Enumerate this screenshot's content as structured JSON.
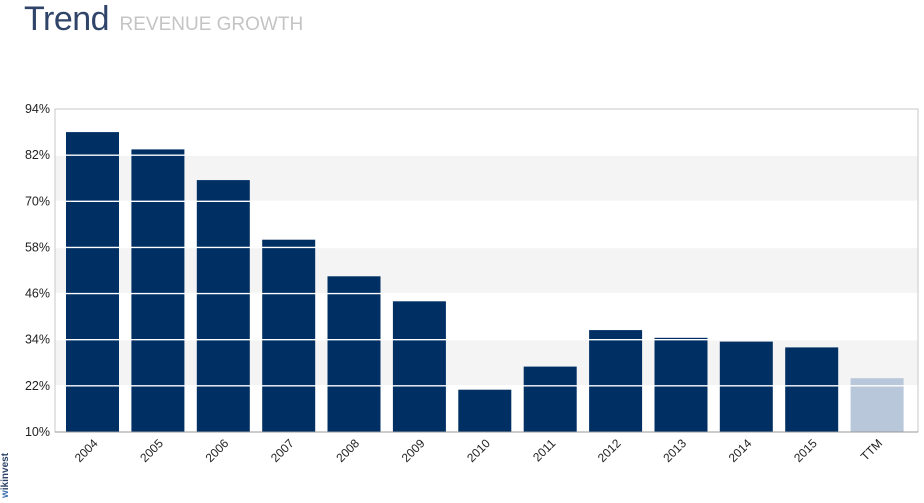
{
  "header": {
    "title": "Trend",
    "subtitle": "REVENUE GROWTH"
  },
  "brand": {
    "first": "w",
    "rest": "ikinvest"
  },
  "colors": {
    "bar": "#002f64",
    "bar_estimate": "#b8c7d9",
    "title": "#2f4468",
    "subtitle": "#c4c4c4",
    "band": "#f4f4f4",
    "frame": "#c8c8c8",
    "gridline": "#ffffff"
  },
  "chart_data": {
    "type": "bar",
    "title": "REVENUE GROWTH",
    "categories": [
      "2004",
      "2005",
      "2006",
      "2007",
      "2008",
      "2009",
      "2010",
      "2011",
      "2012",
      "2013",
      "2014",
      "2015",
      "TTM"
    ],
    "values": [
      88,
      83.5,
      75.5,
      60,
      50.5,
      44,
      21,
      27,
      36.5,
      34.5,
      33.5,
      32,
      24
    ],
    "estimated": [
      false,
      false,
      false,
      false,
      false,
      false,
      false,
      false,
      false,
      false,
      false,
      false,
      true
    ],
    "ylim": [
      10,
      94
    ],
    "yticks": [
      94,
      82,
      70,
      58,
      46,
      34,
      22,
      10
    ],
    "ytick_labels": [
      "94%",
      "82%",
      "70%",
      "58%",
      "46%",
      "34%",
      "22%",
      "10%"
    ],
    "xlabel": "",
    "ylabel": "",
    "grid": true,
    "legend": "none"
  }
}
